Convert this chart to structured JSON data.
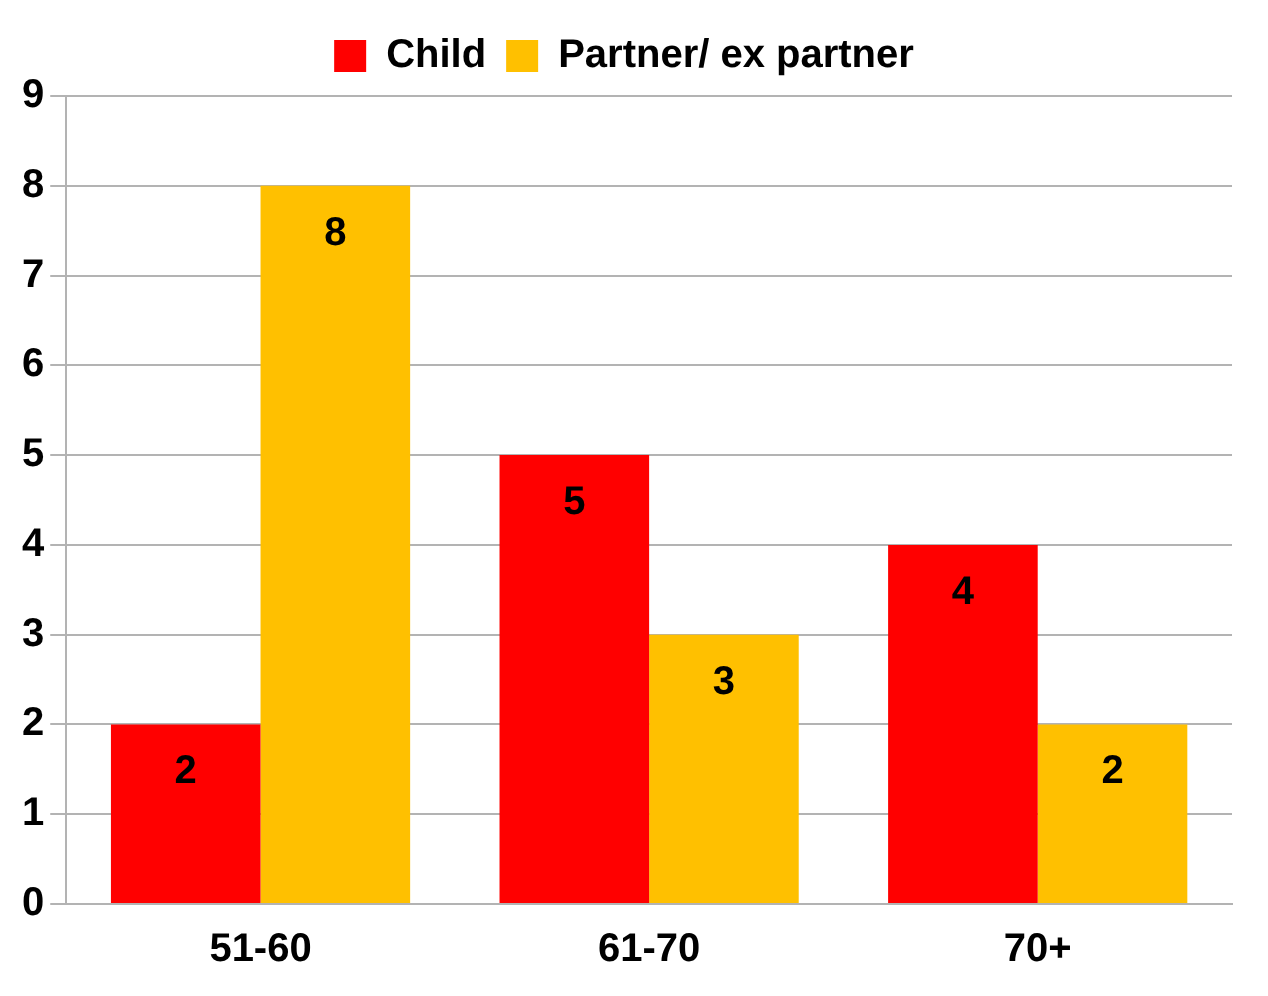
{
  "chart_data": {
    "type": "bar",
    "categories": [
      "51-60",
      "61-70",
      "70+"
    ],
    "series": [
      {
        "name": "Child",
        "color": "#ff0000",
        "values": [
          2,
          5,
          4
        ]
      },
      {
        "name": "Partner/ ex partner",
        "color": "#ffc000",
        "values": [
          8,
          3,
          2
        ]
      }
    ],
    "ylim": [
      0,
      9
    ],
    "yticks": [
      0,
      1,
      2,
      3,
      4,
      5,
      6,
      7,
      8,
      9
    ],
    "grid": "y",
    "legend": "top",
    "data_labels": true
  }
}
